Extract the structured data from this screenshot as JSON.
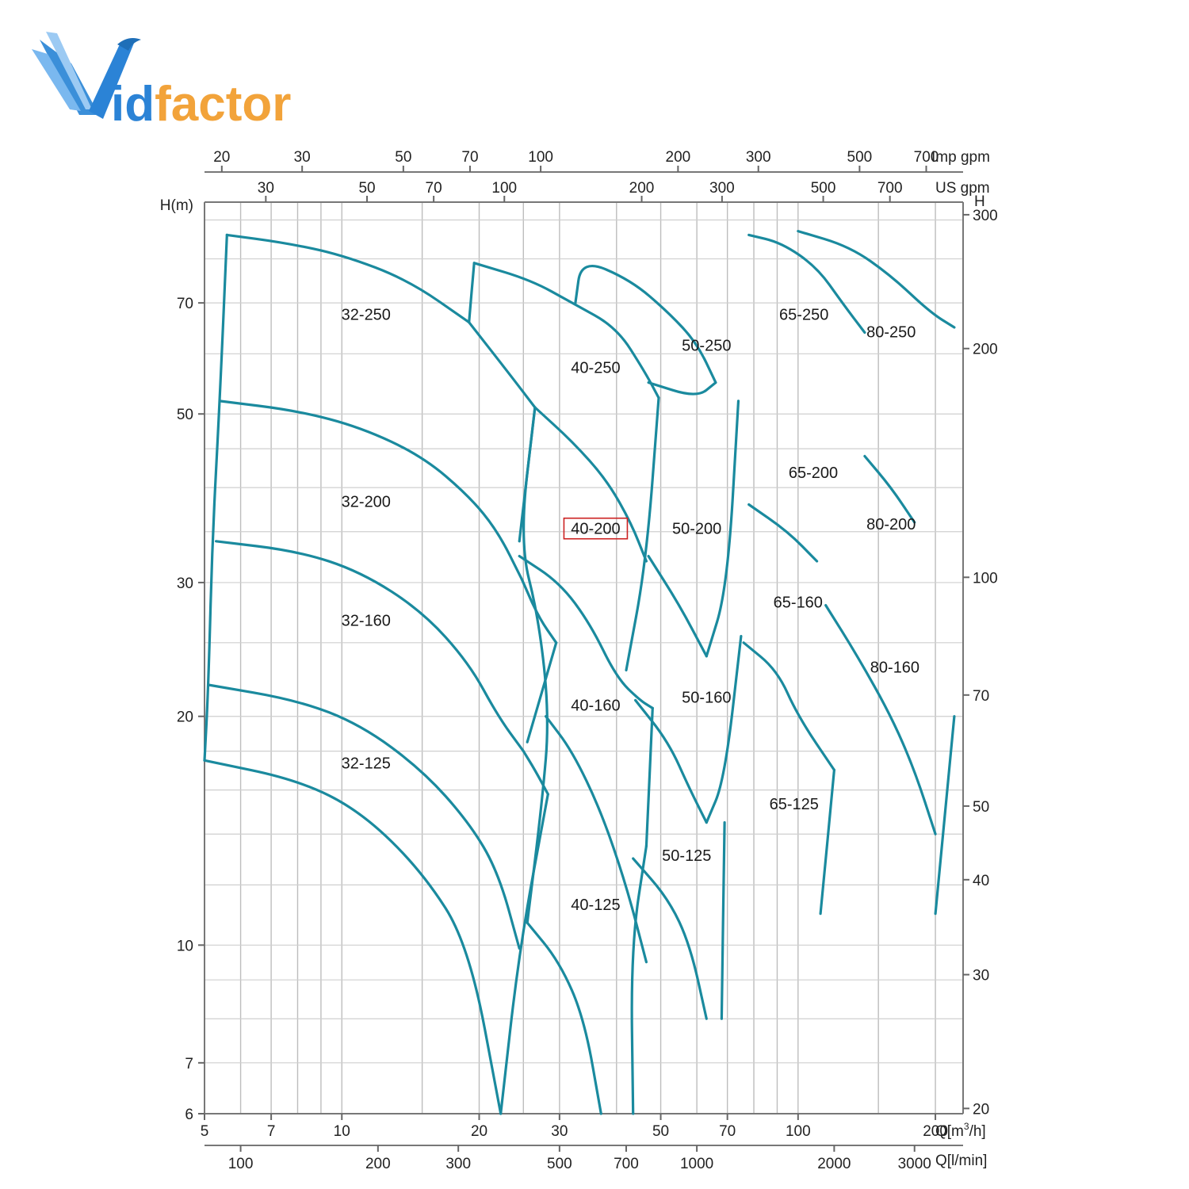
{
  "logo": {
    "text_prefix": "V",
    "text_rest": "idfactor",
    "colors": {
      "blue": "#2b83d6",
      "orange": "#f2a33a"
    }
  },
  "chart_data": {
    "type": "line",
    "title": "",
    "xlabel": "Q[m³/h]",
    "ylabel": "H(m)",
    "x_scale": "log",
    "y_scale": "log",
    "xlim": [
      5,
      230
    ],
    "ylim": [
      6,
      95
    ],
    "grid": true,
    "axes": {
      "left": {
        "label": "H(m)",
        "ticks": [
          "6",
          "7",
          "10",
          "20",
          "30",
          "50",
          "70"
        ]
      },
      "right": {
        "label": "H",
        "ticks": [
          "20",
          "30",
          "40",
          "50",
          "70",
          "100",
          "200",
          "300"
        ]
      },
      "bottom_primary": {
        "label": "Q[m³/h]",
        "label_main": "Q[m",
        "label_sup": "3",
        "label_end": "/h]",
        "ticks": [
          "5",
          "7",
          "10",
          "20",
          "30",
          "50",
          "70",
          "100",
          "200"
        ]
      },
      "bottom_secondary": {
        "label": "Q[l/min]",
        "ticks": [
          "100",
          "200",
          "300",
          "500",
          "700",
          "1000",
          "2000",
          "3000"
        ]
      },
      "top_primary": {
        "label": "Imp gpm",
        "ticks": [
          "20",
          "30",
          "50",
          "70",
          "100",
          "200",
          "300",
          "500",
          "700"
        ]
      },
      "top_secondary": {
        "label": "US gpm",
        "ticks": [
          "30",
          "50",
          "70",
          "100",
          "200",
          "300",
          "500",
          "700"
        ]
      }
    },
    "regions": [
      {
        "name": "32-250",
        "label": "32-250"
      },
      {
        "name": "32-200",
        "label": "32-200"
      },
      {
        "name": "32-160",
        "label": "32-160"
      },
      {
        "name": "32-125",
        "label": "32-125"
      },
      {
        "name": "40-250",
        "label": "40-250"
      },
      {
        "name": "40-200",
        "label": "40-200",
        "highlighted": true,
        "highlight_color": "#cc2222"
      },
      {
        "name": "40-160",
        "label": "40-160"
      },
      {
        "name": "40-125",
        "label": "40-125"
      },
      {
        "name": "50-250",
        "label": "50-250"
      },
      {
        "name": "50-200",
        "label": "50-200"
      },
      {
        "name": "50-160",
        "label": "50-160"
      },
      {
        "name": "50-125",
        "label": "50-125"
      },
      {
        "name": "65-250",
        "label": "65-250"
      },
      {
        "name": "65-200",
        "label": "65-200"
      },
      {
        "name": "65-160",
        "label": "65-160"
      },
      {
        "name": "65-125",
        "label": "65-125"
      },
      {
        "name": "80-250",
        "label": "80-250"
      },
      {
        "name": "80-200",
        "label": "80-200"
      },
      {
        "name": "80-160",
        "label": "80-160"
      }
    ],
    "curves": [
      {
        "name": "32-250-top",
        "points": [
          [
            5.6,
            86
          ],
          [
            7.5,
            84
          ],
          [
            10,
            81
          ],
          [
            14,
            75
          ],
          [
            19,
            66
          ]
        ]
      },
      {
        "name": "32-250-right",
        "points": [
          [
            19,
            66
          ],
          [
            23,
            57
          ],
          [
            26.5,
            51
          ]
        ]
      },
      {
        "name": "32-200-top",
        "points": [
          [
            5.4,
            52
          ],
          [
            8,
            50.5
          ],
          [
            11,
            48
          ],
          [
            15,
            44
          ],
          [
            19,
            39
          ],
          [
            22,
            35
          ],
          [
            24.8,
            30.3
          ]
        ]
      },
      {
        "name": "32-200-right",
        "points": [
          [
            24.8,
            30.3
          ],
          [
            27,
            27
          ],
          [
            29.5,
            25
          ]
        ]
      },
      {
        "name": "32-160-top",
        "points": [
          [
            5.3,
            34
          ],
          [
            8,
            33
          ],
          [
            11,
            31
          ],
          [
            15,
            27.5
          ],
          [
            19,
            23.5
          ],
          [
            22,
            20
          ],
          [
            25,
            18
          ]
        ]
      },
      {
        "name": "32-125-top",
        "points": [
          [
            5.1,
            22
          ],
          [
            8,
            21
          ],
          [
            11,
            19.5
          ],
          [
            15,
            17
          ],
          [
            19,
            14.5
          ],
          [
            22,
            12.5
          ],
          [
            24.5,
            9.9
          ]
        ]
      },
      {
        "name": "32-125-main",
        "points": [
          [
            5,
            17.5
          ],
          [
            8,
            16.5
          ],
          [
            11,
            15
          ],
          [
            15,
            12.5
          ],
          [
            19,
            10
          ],
          [
            22.3,
            6
          ]
        ]
      },
      {
        "name": "32-left-edge",
        "points": [
          [
            5.6,
            86
          ],
          [
            5.4,
            52
          ],
          [
            5.2,
            34
          ],
          [
            5.1,
            22
          ],
          [
            5,
            17.5
          ]
        ]
      },
      {
        "name": "32-right-edge-a",
        "points": [
          [
            26.5,
            51
          ],
          [
            24.5,
            34
          ]
        ]
      },
      {
        "name": "32-right-edge-b",
        "points": [
          [
            29.5,
            25
          ],
          [
            25.5,
            18.5
          ]
        ]
      },
      {
        "name": "32-right-edge-c",
        "points": [
          [
            28.3,
            15.8
          ],
          [
            24.5,
            9.9
          ],
          [
            22.3,
            6
          ]
        ]
      },
      {
        "name": "32-160-right",
        "points": [
          [
            25,
            18
          ],
          [
            26.5,
            17
          ],
          [
            28.3,
            15.8
          ]
        ]
      },
      {
        "name": "40-250-top",
        "points": [
          [
            19.5,
            79
          ],
          [
            26,
            75
          ],
          [
            32,
            70
          ],
          [
            40,
            65
          ],
          [
            46,
            57
          ],
          [
            49.5,
            52.5
          ]
        ]
      },
      {
        "name": "40-250-left",
        "points": [
          [
            19.5,
            79
          ],
          [
            19,
            66
          ]
        ]
      },
      {
        "name": "40-200-top",
        "points": [
          [
            26.5,
            51
          ],
          [
            32,
            46
          ],
          [
            38,
            41
          ],
          [
            43,
            36
          ],
          [
            46.5,
            32
          ]
        ]
      },
      {
        "name": "40-200-right",
        "points": [
          [
            49.5,
            52.5
          ],
          [
            46.5,
            32
          ],
          [
            42,
            23
          ]
        ]
      },
      {
        "name": "40-160-top",
        "points": [
          [
            24.5,
            32.5
          ],
          [
            30,
            30
          ],
          [
            35,
            26.5
          ],
          [
            40,
            22.5
          ],
          [
            45,
            21
          ],
          [
            48,
            20.5
          ]
        ]
      },
      {
        "name": "40-160-right",
        "points": [
          [
            48,
            20.5
          ],
          [
            46.5,
            13.5
          ]
        ]
      },
      {
        "name": "40-125-top",
        "points": [
          [
            28,
            20
          ],
          [
            32,
            18
          ],
          [
            37,
            15
          ],
          [
            42,
            12
          ],
          [
            46.5,
            9.5
          ]
        ]
      },
      {
        "name": "40-125-main",
        "points": [
          [
            25.5,
            10.7
          ],
          [
            30,
            9.5
          ],
          [
            34,
            8
          ],
          [
            37,
            6
          ]
        ]
      },
      {
        "name": "40-left-edge",
        "points": [
          [
            26.5,
            51
          ],
          [
            24.5,
            34
          ],
          [
            27,
            27
          ],
          [
            28.5,
            20
          ],
          [
            27.5,
            15.5
          ],
          [
            25.5,
            10.7
          ]
        ]
      },
      {
        "name": "40-right-edge",
        "points": [
          [
            46.5,
            13.5
          ],
          [
            43,
            9.9
          ],
          [
            43.5,
            6
          ]
        ]
      },
      {
        "name": "50-250-top",
        "points": [
          [
            32.5,
            70
          ],
          [
            33.5,
            80
          ],
          [
            43,
            75
          ],
          [
            52,
            68
          ],
          [
            60,
            62
          ],
          [
            66,
            55
          ]
        ]
      },
      {
        "name": "50-250-bottom",
        "points": [
          [
            47,
            55
          ],
          [
            60,
            52.5
          ],
          [
            66,
            55
          ]
        ]
      },
      {
        "name": "50-200-top",
        "points": [
          [
            47,
            32.5
          ],
          [
            55,
            28
          ],
          [
            63,
            24
          ]
        ]
      },
      {
        "name": "50-200-right",
        "points": [
          [
            74,
            52
          ],
          [
            70,
            29.5
          ],
          [
            63,
            24
          ]
        ]
      },
      {
        "name": "50-160-top",
        "points": [
          [
            44,
            21
          ],
          [
            52,
            18.5
          ],
          [
            58,
            16
          ],
          [
            63,
            14.5
          ]
        ]
      },
      {
        "name": "50-160-right",
        "points": [
          [
            75,
            25.5
          ],
          [
            69,
            16.5
          ],
          [
            63,
            14.5
          ]
        ]
      },
      {
        "name": "50-125-top",
        "points": [
          [
            43.5,
            13
          ],
          [
            52,
            11.5
          ],
          [
            58,
            10
          ],
          [
            63,
            8
          ]
        ]
      },
      {
        "name": "50-125-right",
        "points": [
          [
            69,
            14.5
          ],
          [
            68,
            8
          ]
        ]
      },
      {
        "name": "65-250-top",
        "points": [
          [
            78,
            86
          ],
          [
            92,
            84
          ],
          [
            110,
            78
          ],
          [
            125,
            70
          ],
          [
            140,
            64
          ]
        ]
      },
      {
        "name": "65-200-top",
        "points": [
          [
            78,
            38
          ],
          [
            95,
            35
          ],
          [
            110,
            32
          ]
        ]
      },
      {
        "name": "65-160-top",
        "points": [
          [
            76,
            25
          ],
          [
            90,
            23
          ],
          [
            100,
            20
          ],
          [
            120,
            17
          ]
        ]
      },
      {
        "name": "65-125-right",
        "points": [
          [
            120,
            17
          ],
          [
            112,
            11
          ]
        ]
      },
      {
        "name": "80-250-top",
        "points": [
          [
            100,
            87
          ],
          [
            130,
            83
          ],
          [
            160,
            76
          ],
          [
            195,
            68
          ],
          [
            220,
            65
          ]
        ]
      },
      {
        "name": "80-200-top",
        "points": [
          [
            140,
            44
          ],
          [
            160,
            40
          ],
          [
            180,
            36
          ]
        ]
      },
      {
        "name": "80-160-top",
        "points": [
          [
            115,
            28
          ],
          [
            135,
            24
          ],
          [
            160,
            20
          ],
          [
            180,
            17
          ],
          [
            200,
            14
          ]
        ]
      },
      {
        "name": "80-160-right",
        "points": [
          [
            220,
            20
          ],
          [
            200,
            11
          ]
        ]
      }
    ]
  }
}
